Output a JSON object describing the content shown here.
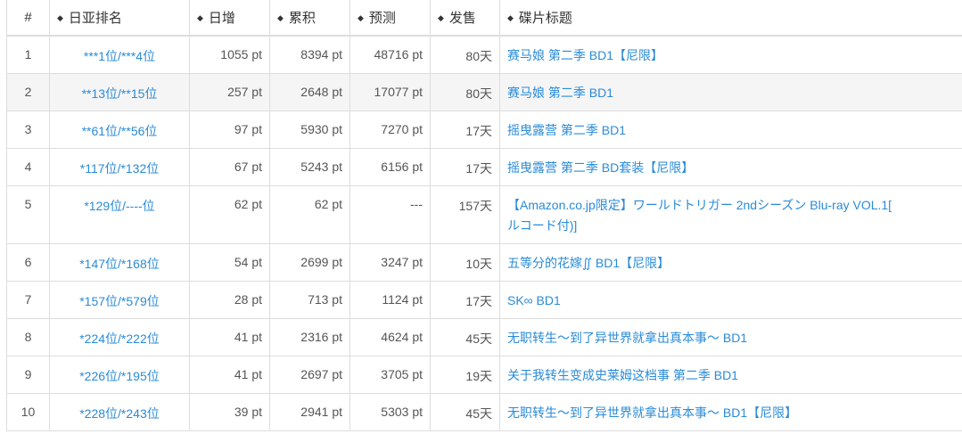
{
  "headers": [
    "#",
    "日亚排名",
    "日增",
    "累积",
    "预测",
    "发售",
    "碟片标题"
  ],
  "sort_icon": "sort-updown-icon",
  "rows": [
    {
      "n": "1",
      "rank": "***1位/***4位",
      "daily": "1055 pt",
      "total": "8394 pt",
      "forecast": "48716 pt",
      "days": "80天",
      "title": "赛马娘 第二季 BD1【尼限】"
    },
    {
      "n": "2",
      "rank": "**13位/**15位",
      "daily": "257 pt",
      "total": "2648 pt",
      "forecast": "17077 pt",
      "days": "80天",
      "title": "赛马娘 第二季 BD1"
    },
    {
      "n": "3",
      "rank": "**61位/**56位",
      "daily": "97 pt",
      "total": "5930 pt",
      "forecast": "7270 pt",
      "days": "17天",
      "title": "摇曳露营 第二季 BD1"
    },
    {
      "n": "4",
      "rank": "*117位/*132位",
      "daily": "67 pt",
      "total": "5243 pt",
      "forecast": "6156 pt",
      "days": "17天",
      "title": "摇曳露营 第二季 BD套装【尼限】"
    },
    {
      "n": "5",
      "rank": "*129位/----位",
      "daily": "62 pt",
      "total": "62 pt",
      "forecast": "---",
      "days": "157天",
      "title": "【Amazon.co.jp限定】ワールドトリガー 2ndシーズン Blu-ray VOL.1[",
      "title2": "ルコード付)]"
    },
    {
      "n": "6",
      "rank": "*147位/*168位",
      "daily": "54 pt",
      "total": "2699 pt",
      "forecast": "3247 pt",
      "days": "10天",
      "title": "五等分的花嫁∬ BD1【尼限】"
    },
    {
      "n": "7",
      "rank": "*157位/*579位",
      "daily": "28 pt",
      "total": "713 pt",
      "forecast": "1124 pt",
      "days": "17天",
      "title": "SK∞ BD1"
    },
    {
      "n": "8",
      "rank": "*224位/*222位",
      "daily": "41 pt",
      "total": "2316 pt",
      "forecast": "4624 pt",
      "days": "45天",
      "title": "无职转生～到了异世界就拿出真本事～ BD1"
    },
    {
      "n": "9",
      "rank": "*226位/*195位",
      "daily": "41 pt",
      "total": "2697 pt",
      "forecast": "3705 pt",
      "days": "19天",
      "title": "关于我转生变成史莱姆这档事 第二季 BD1"
    },
    {
      "n": "10",
      "rank": "*228位/*243位",
      "daily": "39 pt",
      "total": "2941 pt",
      "forecast": "5303 pt",
      "days": "45天",
      "title": "无职转生～到了异世界就拿出真本事～ BD1【尼限】"
    }
  ]
}
